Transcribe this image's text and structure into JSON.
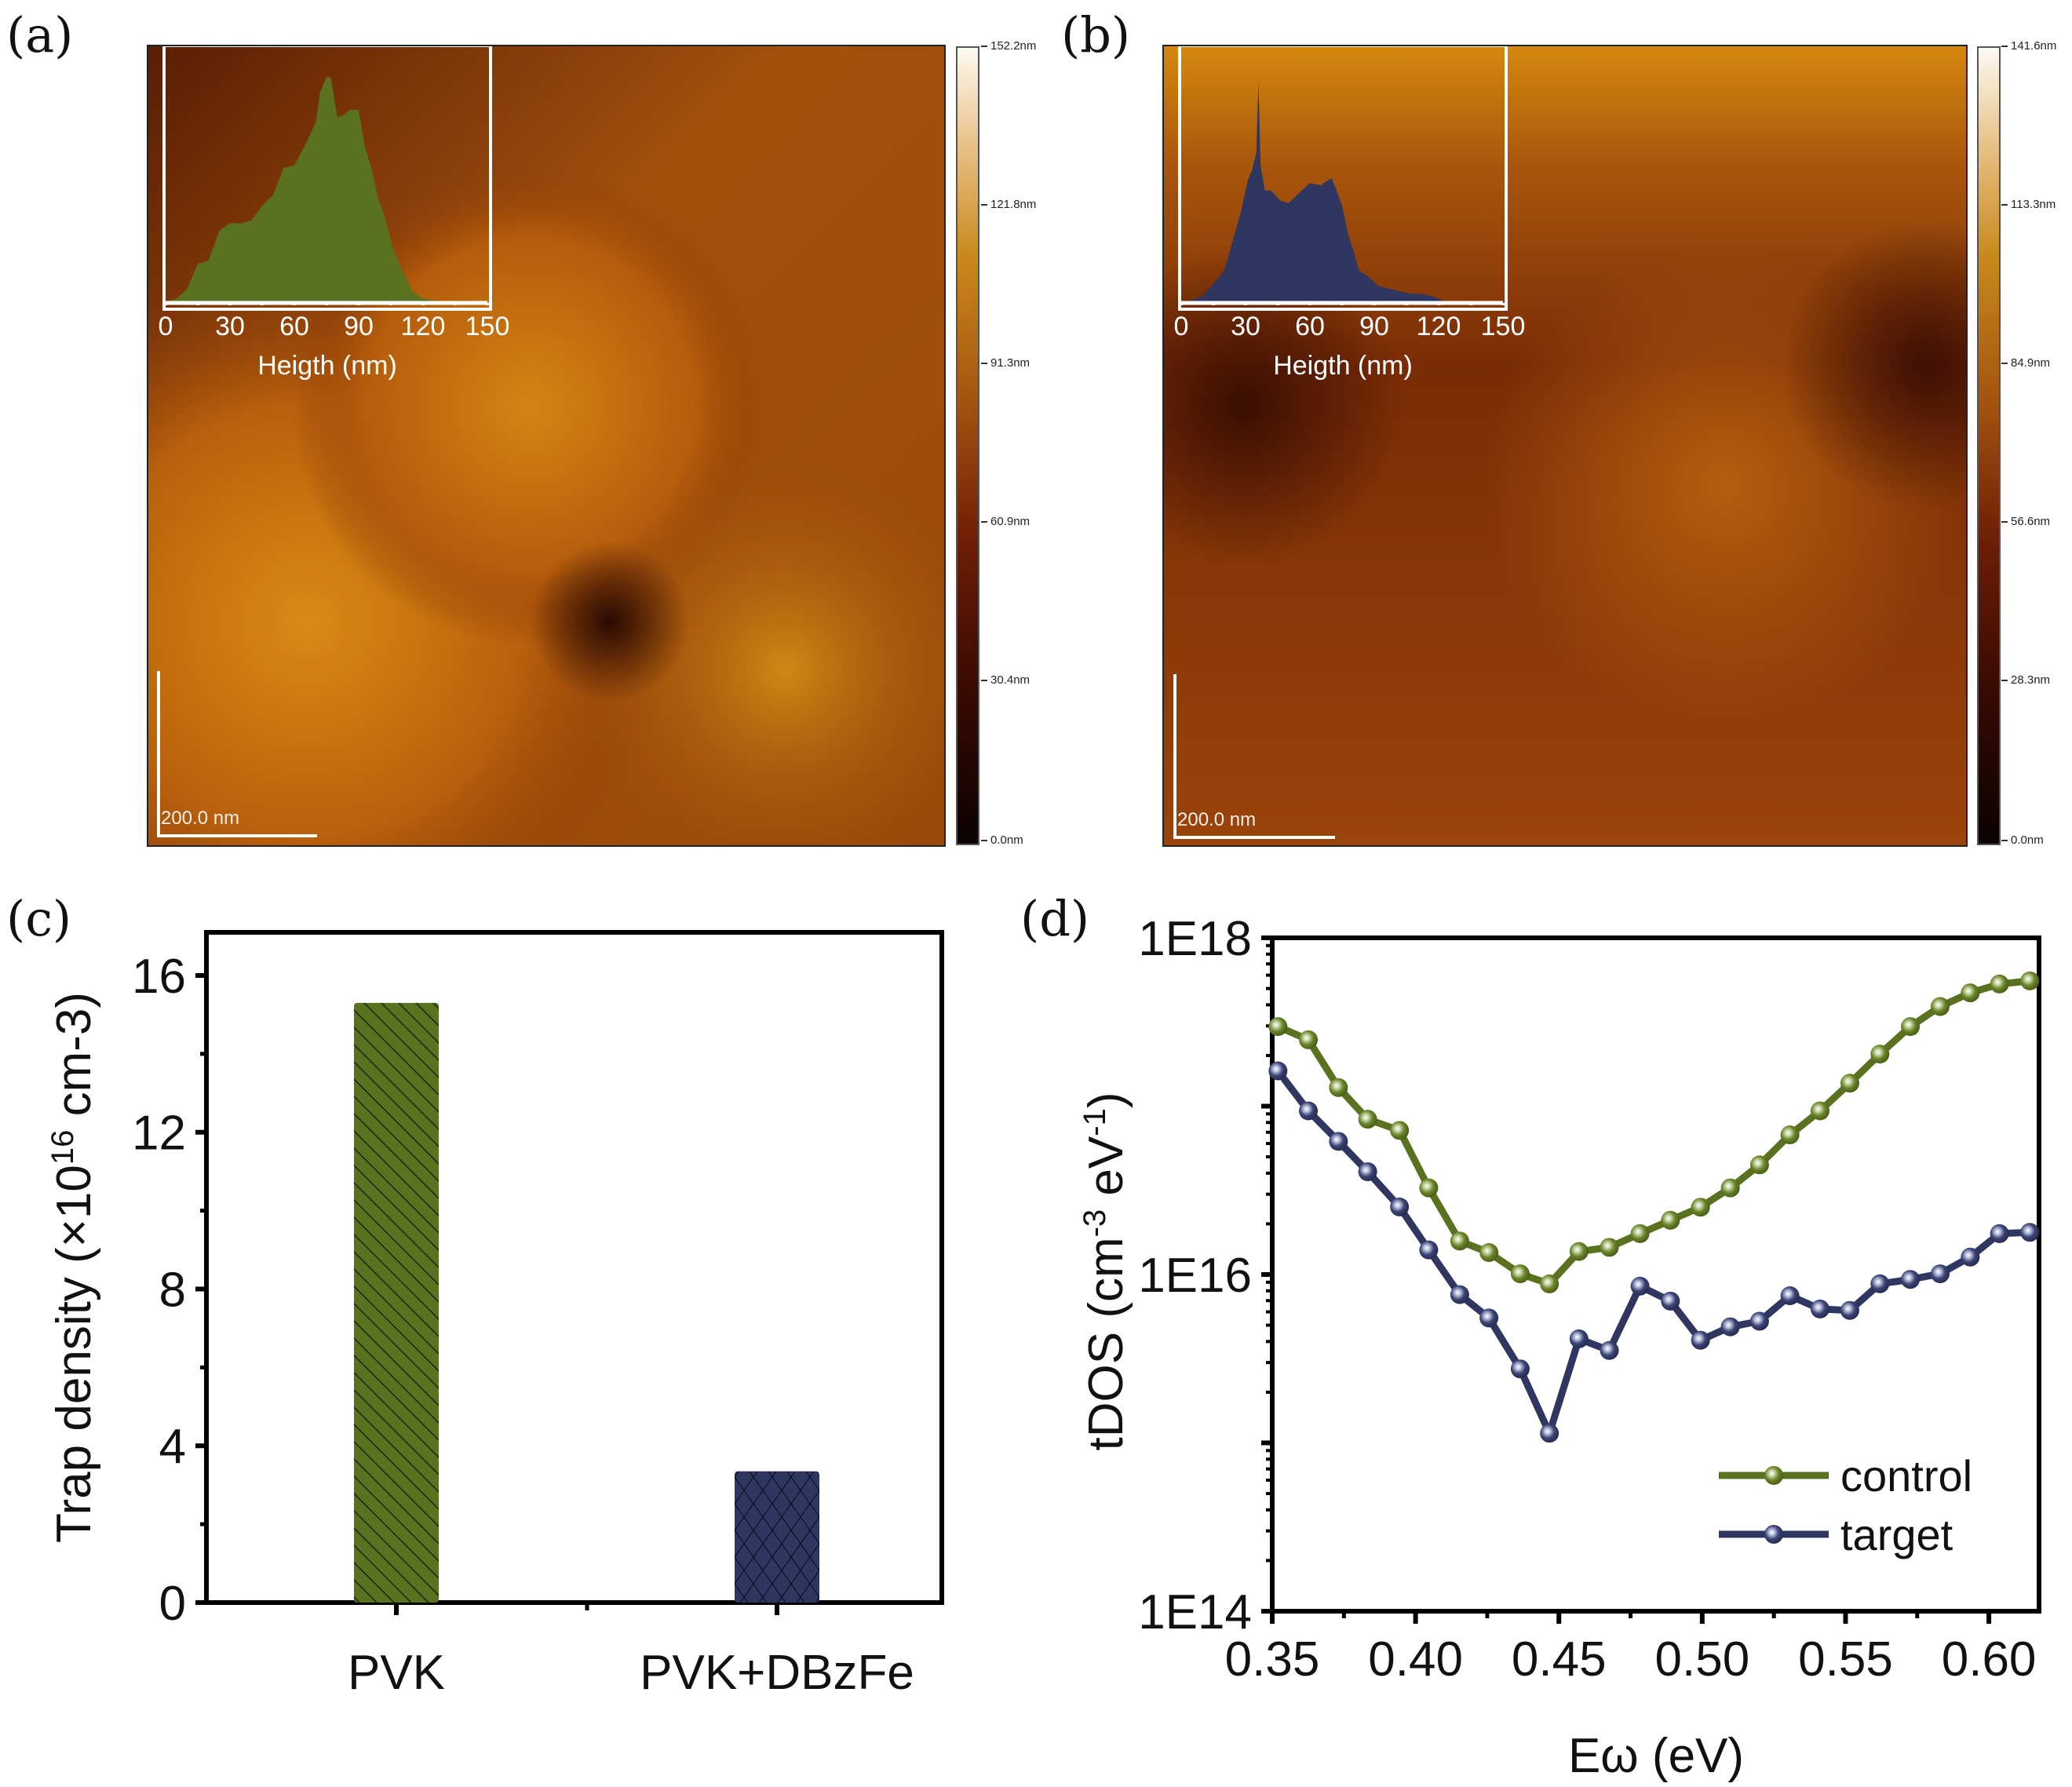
{
  "panels": {
    "a": {
      "label": "(a)",
      "colorbar_ticks": [
        "152.2nm",
        "121.8nm",
        "91.3nm",
        "60.9nm",
        "30.4nm",
        "0.0nm"
      ],
      "scale_bar": "200.0 nm",
      "histogram": {
        "xlabel": "Heigth (nm)",
        "xticks": [
          "0",
          "30",
          "60",
          "90",
          "120",
          "150"
        ],
        "color": "#5a7120"
      }
    },
    "b": {
      "label": "(b)",
      "colorbar_ticks": [
        "141.6nm",
        "113.3nm",
        "84.9nm",
        "56.6nm",
        "28.3nm",
        "0.0nm"
      ],
      "scale_bar": "200.0 nm",
      "histogram": {
        "xlabel": "Heigth (nm)",
        "xticks": [
          "0",
          "30",
          "60",
          "90",
          "120",
          "150"
        ],
        "color": "#2f3760"
      }
    },
    "c": {
      "label": "(c)"
    },
    "d": {
      "label": "(d)"
    }
  },
  "chart_data": [
    {
      "id": "a-inset",
      "type": "area",
      "title": "",
      "xlabel": "Heigth (nm)",
      "ylabel": "",
      "xlim": [
        0,
        150
      ],
      "x": [
        0,
        5,
        10,
        15,
        20,
        25,
        30,
        35,
        40,
        45,
        50,
        55,
        60,
        65,
        70,
        72,
        75,
        77,
        80,
        83,
        86,
        90,
        93,
        96,
        99,
        102,
        106,
        110,
        115,
        120,
        125,
        130,
        140,
        150
      ],
      "values": [
        0,
        1,
        5,
        14,
        17,
        27,
        32,
        30,
        33,
        37,
        43,
        52,
        55,
        61,
        72,
        82,
        90,
        88,
        74,
        73,
        77,
        75,
        62,
        52,
        42,
        33,
        22,
        12,
        4,
        1,
        0.3,
        0,
        0,
        0
      ],
      "color": "#5a7120"
    },
    {
      "id": "b-inset",
      "type": "area",
      "title": "",
      "xlabel": "Heigth (nm)",
      "ylabel": "",
      "xlim": [
        0,
        150
      ],
      "x": [
        0,
        5,
        10,
        15,
        20,
        25,
        28,
        31,
        33,
        35,
        36,
        37,
        39,
        42,
        46,
        50,
        55,
        60,
        65,
        70,
        72,
        75,
        78,
        80,
        83,
        87,
        92,
        97,
        102,
        107,
        112,
        117,
        120,
        123,
        130,
        150
      ],
      "values": [
        0,
        0.5,
        2,
        6,
        13,
        26,
        37,
        47,
        53,
        58,
        88,
        53,
        45,
        43,
        41,
        38,
        44,
        46,
        47,
        48,
        46,
        37,
        27,
        20,
        13,
        9,
        7,
        5,
        4,
        3,
        3,
        2,
        1,
        0,
        0,
        0
      ],
      "color": "#2f3760"
    },
    {
      "id": "c",
      "type": "bar",
      "title": "",
      "categories": [
        "PVK",
        "PVK+DBzFe"
      ],
      "values": [
        15.3,
        3.35
      ],
      "colors": [
        "#5a7120",
        "#2f3760"
      ],
      "patterns": [
        "diagonal-hatch",
        "crosshatch"
      ],
      "xlabel": "",
      "ylabel": "Trap density (×10¹⁶ cm-3)",
      "ylabel_parts": {
        "main": "Trap density (×10",
        "sup": "16",
        "rest": " cm-3)"
      },
      "yticks": [
        0,
        4,
        8,
        12,
        16
      ],
      "yticks_labels": [
        "0",
        "4",
        "8",
        "12",
        "16"
      ],
      "ylim": [
        0,
        17.1
      ],
      "grid": false
    },
    {
      "id": "d",
      "type": "line",
      "title": "",
      "xlabel": "Eω (eV)",
      "ylabel": "tDOS (cm-3 eV-1)",
      "ylabel_parts": {
        "a": "tDOS (cm",
        "sup1": "-3",
        "b": " eV",
        "sup2": "-1",
        "c": ")"
      },
      "yscale": "log",
      "ylim": [
        100000000000000.0,
        1e+18
      ],
      "yticks_labels": [
        "1E14",
        "1E16",
        "1E18"
      ],
      "xlim": [
        0.35,
        0.6175
      ],
      "xticks": [
        0.35,
        0.4,
        0.45,
        0.5,
        0.55,
        0.6
      ],
      "xticks_labels": [
        "0.35",
        "0.40",
        "0.45",
        "0.50",
        "0.55",
        "0.60"
      ],
      "legend": "bottom-right",
      "grid": false,
      "x": [
        0.352,
        0.3626,
        0.3731,
        0.3833,
        0.3944,
        0.4046,
        0.4154,
        0.4256,
        0.4365,
        0.4467,
        0.457,
        0.4676,
        0.4783,
        0.4889,
        0.4994,
        0.5098,
        0.52,
        0.5306,
        0.5411,
        0.5515,
        0.562,
        0.5726,
        0.583,
        0.5935,
        0.6037,
        0.6143
      ],
      "series": [
        {
          "name": "control",
          "color": "#5a7120",
          "values": [
            2.97e+17,
            2.48e+17,
            1.29e+17,
            8.36e+16,
            7.18e+16,
            3.27e+16,
            1.58e+16,
            1.35e+16,
            1.01e+16,
            8800000000000000.0,
            1.37e+16,
            1.45e+16,
            1.75e+16,
            2.1e+16,
            2.51e+16,
            3.27e+16,
            4.48e+16,
            6.76e+16,
            9.38e+16,
            1.37e+17,
            2.04e+17,
            2.97e+17,
            3.91e+17,
            4.71e+17,
            5.32e+17,
            5.55e+17
          ]
        },
        {
          "name": "target",
          "color": "#2f3760",
          "values": [
            1.62e+17,
            9.38e+16,
            6.18e+16,
            4.08e+16,
            2.52e+16,
            1.4e+16,
            7600000000000000.0,
            5520000000000000.0,
            2750000000000000.0,
            1140000000000000.0,
            4150000000000000.0,
            3540000000000000.0,
            8530000000000000.0,
            6950000000000000.0,
            4070000000000000.0,
            4890000000000000.0,
            5280000000000000.0,
            7480000000000000.0,
            6240000000000000.0,
            6120000000000000.0,
            8810000000000000.0,
            9350000000000000.0,
            1.01e+16,
            1.27e+16,
            1.75e+16,
            1.78e+16
          ]
        }
      ]
    }
  ]
}
